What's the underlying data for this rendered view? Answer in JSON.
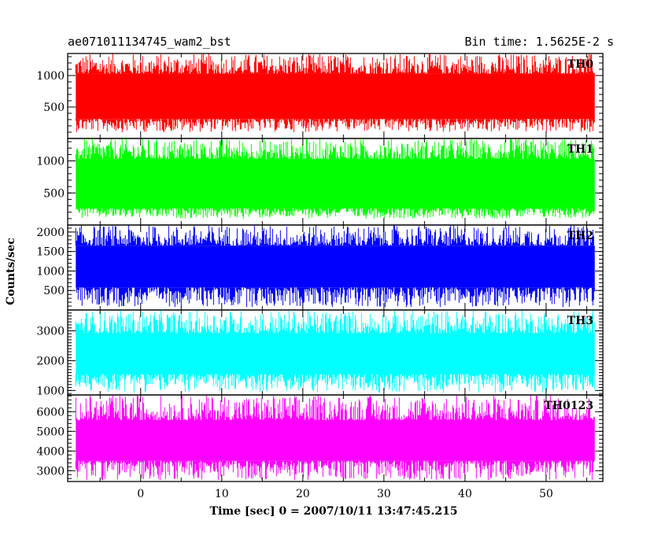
{
  "header": {
    "left_title": "ae071011134745_wam2_bst",
    "right_title": "Bin time: 1.5625E-2 s"
  },
  "chart_data": {
    "type": "line",
    "xlabel": "Time [sec] 0 = 2007/10/11 13:47:45.215",
    "ylabel": "Counts/sec",
    "xlim": [
      -9,
      57
    ],
    "x_range_data": [
      -8,
      56
    ],
    "x_ticks": [
      "0",
      "10",
      "20",
      "30",
      "40",
      "50"
    ],
    "grid": false,
    "panels": [
      {
        "name": "TH0",
        "color": "#ff0000",
        "ylim": [
          0,
          1350
        ],
        "y_ticks": [
          "500",
          "1000"
        ],
        "band": [
          100,
          1350
        ],
        "core": [
          310,
          1030
        ]
      },
      {
        "name": "TH1",
        "color": "#00ff00",
        "ylim": [
          0,
          1350
        ],
        "y_ticks": [
          "500",
          "1000"
        ],
        "band": [
          100,
          1350
        ],
        "core": [
          260,
          1030
        ]
      },
      {
        "name": "TH2",
        "color": "#0000ff",
        "ylim": [
          0,
          2180
        ],
        "y_ticks": [
          "500",
          "1000",
          "1500",
          "2000"
        ],
        "band": [
          70,
          2180
        ],
        "core": [
          580,
          1650
        ]
      },
      {
        "name": "TH3",
        "color": "#00ffff",
        "ylim": [
          850,
          3700
        ],
        "y_ticks": [
          "1000",
          "2000",
          "3000"
        ],
        "band": [
          930,
          3700
        ],
        "core": [
          1550,
          2920
        ]
      },
      {
        "name": "TH0123",
        "color": "#ff00ff",
        "ylim": [
          2450,
          6850
        ],
        "y_ticks": [
          "3000",
          "4000",
          "5000",
          "6000"
        ],
        "band": [
          2520,
          6850
        ],
        "core": [
          3500,
          5570
        ]
      }
    ]
  }
}
